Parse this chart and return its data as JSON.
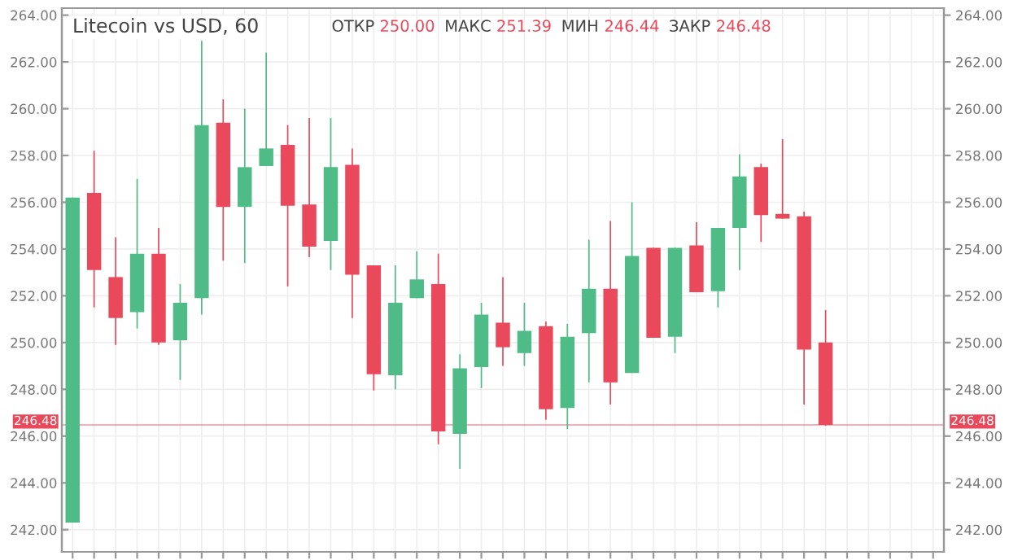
{
  "chart_data": {
    "type": "candlestick",
    "title": "Litecoin vs USD, 60",
    "annotations": [
      "ОТКР 250.00",
      "МАКС 251.39",
      "МИН 246.44",
      "ЗАКР 246.48"
    ],
    "categories": [
      null,
      null,
      null,
      null,
      null,
      null,
      null,
      null,
      null,
      null,
      null,
      null,
      null,
      null,
      null,
      null,
      null,
      null,
      null,
      null,
      null,
      null,
      null,
      null,
      null,
      null,
      null,
      null,
      null,
      null,
      null,
      null,
      null,
      null,
      null,
      null,
      null,
      null,
      null,
      null,
      null
    ],
    "ohlc": [
      [
        242.3,
        256.2,
        242.3,
        256.2
      ],
      [
        256.4,
        258.2,
        251.5,
        253.1
      ],
      [
        252.8,
        254.5,
        249.9,
        251.05
      ],
      [
        251.3,
        257.0,
        250.6,
        253.8
      ],
      [
        253.8,
        254.9,
        249.9,
        250.0
      ],
      [
        250.1,
        252.5,
        248.4,
        251.7
      ],
      [
        251.9,
        262.9,
        251.2,
        259.3
      ],
      [
        259.4,
        260.4,
        253.5,
        255.8
      ],
      [
        255.8,
        260.0,
        253.4,
        257.5
      ],
      [
        257.55,
        262.4,
        257.55,
        258.3
      ],
      [
        258.45,
        259.3,
        252.4,
        255.85
      ],
      [
        255.9,
        259.6,
        253.65,
        254.1
      ],
      [
        254.35,
        259.6,
        253.1,
        257.5
      ],
      [
        257.6,
        258.3,
        251.05,
        252.9
      ],
      [
        253.3,
        253.3,
        247.95,
        248.65
      ],
      [
        248.6,
        253.3,
        248.0,
        251.7
      ],
      [
        251.9,
        253.9,
        251.9,
        252.7
      ],
      [
        252.5,
        253.8,
        245.65,
        246.2
      ],
      [
        246.1,
        249.5,
        244.6,
        248.9
      ],
      [
        248.95,
        251.7,
        248.05,
        251.2
      ],
      [
        250.85,
        252.8,
        249.0,
        249.8
      ],
      [
        249.55,
        251.7,
        249.0,
        250.5
      ],
      [
        250.7,
        250.9,
        246.7,
        247.15
      ],
      [
        247.2,
        250.8,
        246.3,
        250.25
      ],
      [
        250.4,
        254.4,
        248.3,
        252.3
      ],
      [
        252.3,
        255.2,
        247.35,
        248.3
      ],
      [
        248.7,
        256.0,
        248.7,
        253.7
      ],
      [
        254.05,
        254.05,
        250.2,
        250.2
      ],
      [
        250.25,
        254.05,
        249.55,
        254.05
      ],
      [
        254.15,
        255.15,
        252.15,
        252.15
      ],
      [
        252.2,
        254.9,
        251.5,
        254.9
      ],
      [
        254.9,
        258.05,
        253.1,
        257.1
      ],
      [
        257.5,
        257.65,
        254.3,
        255.45
      ],
      [
        255.5,
        258.7,
        255.3,
        255.3
      ],
      [
        255.4,
        255.6,
        247.35,
        249.7
      ],
      [
        250.0,
        251.39,
        246.44,
        246.48
      ],
      null,
      null,
      null,
      null,
      null
    ],
    "colors": [
      "#4fbb87",
      "#e9495a",
      "#e9495a",
      "#4fbb87",
      "#e9495a",
      "#4fbb87",
      "#4fbb87",
      "#e9495a",
      "#4fbb87",
      "#4fbb87",
      "#e9495a",
      "#e9495a",
      "#4fbb87",
      "#e9495a",
      "#e9495a",
      "#4fbb87",
      "#4fbb87",
      "#e9495a",
      "#4fbb87",
      "#4fbb87",
      "#e9495a",
      "#4fbb87",
      "#e9495a",
      "#4fbb87",
      "#4fbb87",
      "#e9495a",
      "#4fbb87",
      "#e9495a",
      "#4fbb87",
      "#e9495a",
      "#4fbb87",
      "#4fbb87",
      "#e9495a",
      "#e9495a",
      "#e9495a",
      "#e9495a",
      null,
      null,
      null,
      null,
      null
    ],
    "ylim": [
      241.05,
      264.3
    ],
    "yticks": [
      {
        "value": 242,
        "label": "242.00"
      },
      {
        "value": 244,
        "label": "244.00"
      },
      {
        "value": 246,
        "label": "246.00"
      },
      {
        "value": 248,
        "label": "248.00"
      },
      {
        "value": 250,
        "label": "250.00"
      },
      {
        "value": 252,
        "label": "252.00"
      },
      {
        "value": 254,
        "label": "254.00"
      },
      {
        "value": 256,
        "label": "256.00"
      },
      {
        "value": 258,
        "label": "258.00"
      },
      {
        "value": 260,
        "label": "260.00"
      },
      {
        "value": 262,
        "label": "262.00"
      },
      {
        "value": 264,
        "label": "264.00"
      }
    ],
    "y2lim": [
      241.05,
      264.3
    ],
    "y2ticks": [
      {
        "value": 242,
        "label": "242.00"
      },
      {
        "value": 244,
        "label": "244.00"
      },
      {
        "value": 246,
        "label": "246.00"
      },
      {
        "value": 248,
        "label": "248.00"
      },
      {
        "value": 250,
        "label": "250.00"
      },
      {
        "value": 252,
        "label": "252.00"
      },
      {
        "value": 254,
        "label": "254.00"
      },
      {
        "value": 256,
        "label": "256.00"
      },
      {
        "value": 258,
        "label": "258.00"
      },
      {
        "value": 260,
        "label": "260.00"
      },
      {
        "value": 262,
        "label": "262.00"
      },
      {
        "value": 264,
        "label": "264.00"
      }
    ],
    "ref_lines": [
      {
        "axis": "y",
        "value": 246.48,
        "label": "246.48",
        "color": "#e9495a"
      }
    ],
    "grid": true,
    "tick_labels": "y"
  }
}
